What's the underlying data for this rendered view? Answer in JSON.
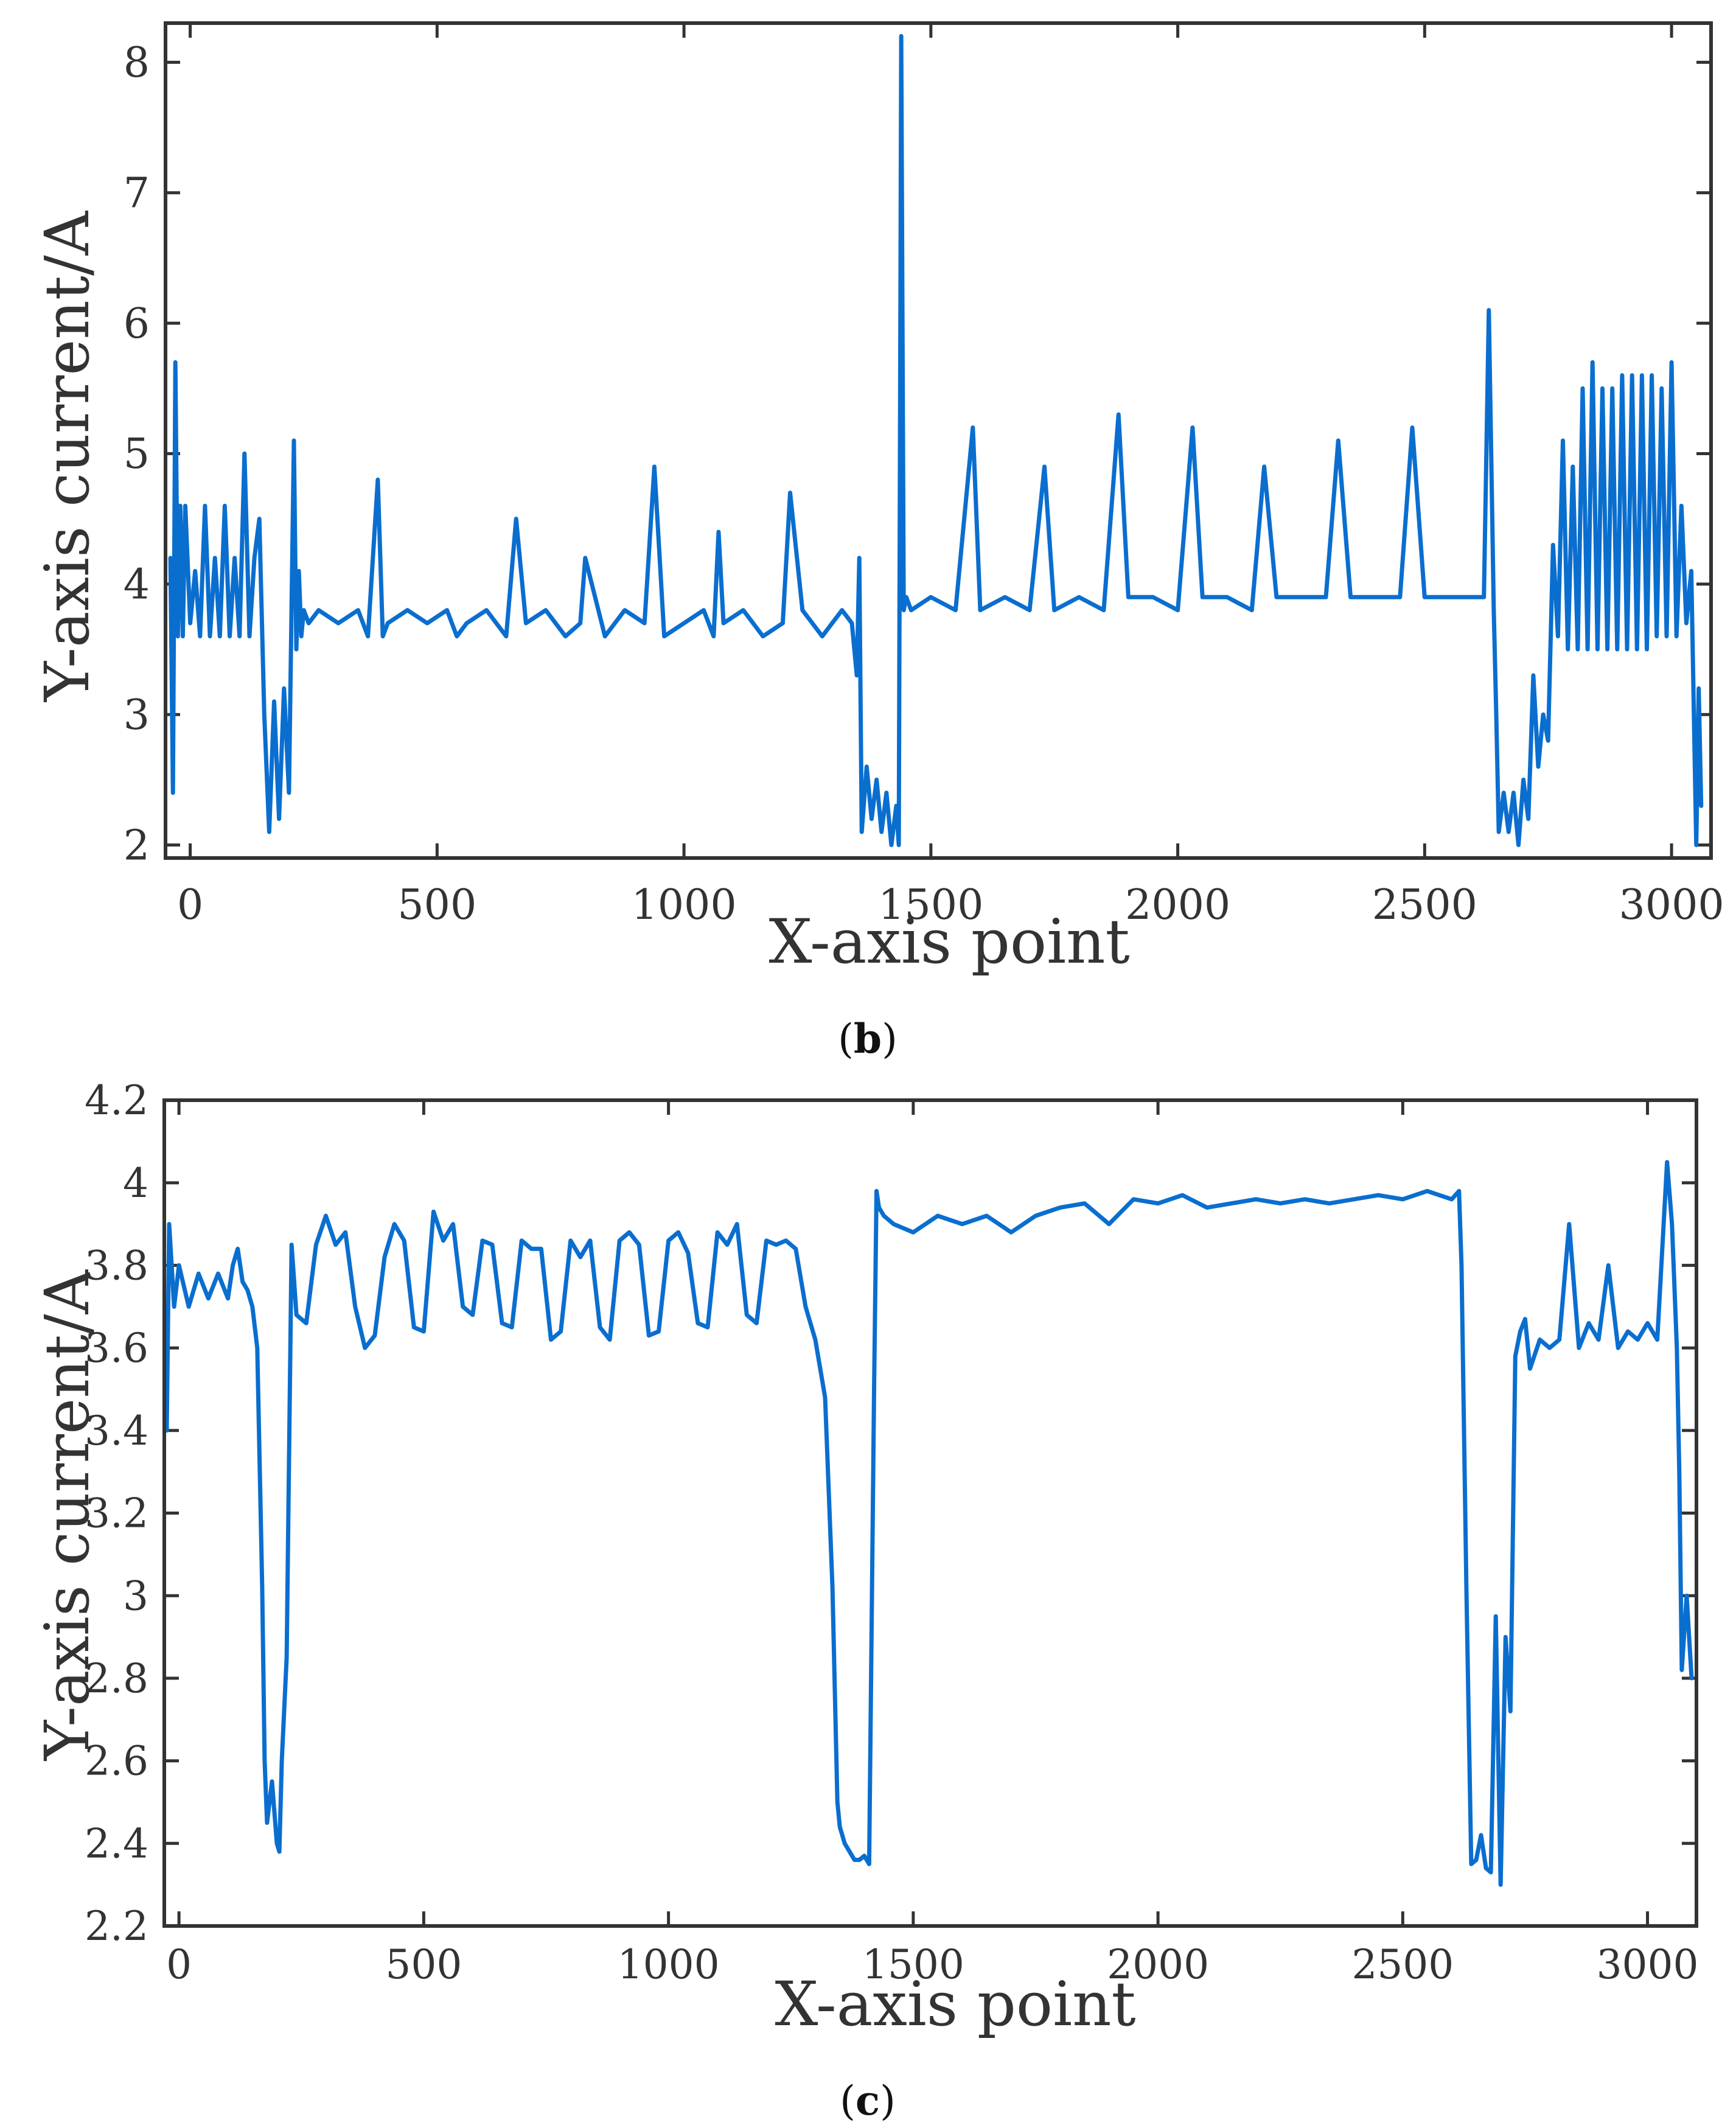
{
  "chart_data": [
    {
      "type": "line",
      "panel_label": "b",
      "xlabel": "X-axis point",
      "ylabel": "Y-axis current/A",
      "xlim": [
        -50,
        3080
      ],
      "ylim": [
        1.9,
        8.3
      ],
      "xticks": [
        0,
        500,
        1000,
        1500,
        2000,
        2500,
        3000
      ],
      "xtick_labels": [
        "0",
        "500",
        "1000",
        "1500",
        "2000",
        "2500",
        "3000"
      ],
      "yticks": [
        2,
        3,
        4,
        5,
        6,
        7,
        8
      ],
      "ytick_labels": [
        "2",
        "3",
        "4",
        "5",
        "6",
        "7",
        "8"
      ],
      "line_color": "#0a6ecf",
      "series": [
        {
          "name": "Y-axis current",
          "x": [
            -40,
            -35,
            -30,
            -25,
            -20,
            -15,
            -10,
            0,
            10,
            20,
            30,
            40,
            50,
            60,
            70,
            80,
            90,
            100,
            110,
            120,
            130,
            140,
            150,
            160,
            170,
            180,
            190,
            200,
            210,
            215,
            220,
            225,
            230,
            240,
            260,
            300,
            340,
            360,
            380,
            390,
            400,
            440,
            480,
            520,
            540,
            560,
            600,
            640,
            660,
            680,
            720,
            760,
            790,
            800,
            840,
            880,
            920,
            940,
            960,
            1000,
            1040,
            1060,
            1070,
            1080,
            1120,
            1160,
            1200,
            1215,
            1240,
            1280,
            1320,
            1340,
            1350,
            1355,
            1360,
            1370,
            1380,
            1390,
            1400,
            1410,
            1420,
            1430,
            1435,
            1440,
            1445,
            1450,
            1460,
            1500,
            1550,
            1585,
            1600,
            1650,
            1700,
            1730,
            1750,
            1800,
            1850,
            1880,
            1900,
            1950,
            2000,
            2030,
            2050,
            2100,
            2150,
            2175,
            2200,
            2250,
            2300,
            2325,
            2350,
            2400,
            2450,
            2475,
            2500,
            2550,
            2600,
            2620,
            2630,
            2640,
            2645,
            2650,
            2660,
            2670,
            2680,
            2690,
            2700,
            2710,
            2720,
            2730,
            2740,
            2750,
            2760,
            2770,
            2780,
            2790,
            2800,
            2810,
            2820,
            2830,
            2840,
            2850,
            2860,
            2870,
            2880,
            2890,
            2900,
            2910,
            2920,
            2930,
            2940,
            2950,
            2960,
            2970,
            2980,
            2990,
            3000,
            3010,
            3020,
            3030,
            3040,
            3050,
            3055,
            3060
          ],
          "y": [
            4.2,
            2.4,
            5.7,
            3.6,
            4.6,
            3.6,
            4.6,
            3.7,
            4.1,
            3.6,
            4.6,
            3.6,
            4.2,
            3.6,
            4.6,
            3.6,
            4.2,
            3.6,
            5.0,
            3.6,
            4.2,
            4.5,
            3.0,
            2.1,
            3.1,
            2.2,
            3.2,
            2.4,
            5.1,
            3.5,
            4.1,
            3.6,
            3.8,
            3.7,
            3.8,
            3.7,
            3.8,
            3.6,
            4.8,
            3.6,
            3.7,
            3.8,
            3.7,
            3.8,
            3.6,
            3.7,
            3.8,
            3.6,
            4.5,
            3.7,
            3.8,
            3.6,
            3.7,
            4.2,
            3.6,
            3.8,
            3.7,
            4.9,
            3.6,
            3.7,
            3.8,
            3.6,
            4.4,
            3.7,
            3.8,
            3.6,
            3.7,
            4.7,
            3.8,
            3.6,
            3.8,
            3.7,
            3.3,
            4.2,
            2.1,
            2.6,
            2.2,
            2.5,
            2.1,
            2.4,
            2.0,
            2.3,
            2.0,
            8.2,
            3.8,
            3.9,
            3.8,
            3.9,
            3.8,
            5.2,
            3.8,
            3.9,
            3.8,
            4.9,
            3.8,
            3.9,
            3.8,
            5.3,
            3.9,
            3.9,
            3.8,
            5.2,
            3.9,
            3.9,
            3.8,
            4.9,
            3.9,
            3.9,
            3.9,
            5.1,
            3.9,
            3.9,
            3.9,
            5.2,
            3.9,
            3.9,
            3.9,
            3.9,
            6.1,
            3.8,
            3.0,
            2.1,
            2.4,
            2.1,
            2.4,
            2.0,
            2.5,
            2.2,
            3.3,
            2.6,
            3.0,
            2.8,
            4.3,
            3.6,
            5.1,
            3.5,
            4.9,
            3.5,
            5.5,
            3.5,
            5.7,
            3.5,
            5.5,
            3.5,
            5.5,
            3.5,
            5.6,
            3.5,
            5.6,
            3.5,
            5.6,
            3.5,
            5.6,
            3.6,
            5.5,
            3.6,
            5.7,
            3.6,
            4.6,
            3.7,
            4.1,
            2.0,
            3.2,
            2.3
          ]
        }
      ]
    },
    {
      "type": "line",
      "panel_label": "c",
      "xlabel": "X-axis point",
      "ylabel": "Y-axis current/A",
      "xlim": [
        -30,
        3100
      ],
      "ylim": [
        2.2,
        4.2
      ],
      "xticks": [
        0,
        500,
        1000,
        1500,
        2000,
        2500,
        3000
      ],
      "xtick_labels": [
        "0",
        "500",
        "1000",
        "1500",
        "2000",
        "2500",
        "3000"
      ],
      "yticks": [
        2.2,
        2.4,
        2.6,
        2.8,
        3.0,
        3.2,
        3.4,
        3.6,
        3.8,
        4.0,
        4.2
      ],
      "ytick_labels": [
        "2.2",
        "2.4",
        "2.6",
        "2.8",
        "3",
        "3.2",
        "3.4",
        "3.6",
        "3.8",
        "4",
        "4.2"
      ],
      "line_color": "#0a6ecf",
      "series": [
        {
          "name": "Y-axis current",
          "x": [
            -25,
            -20,
            -15,
            -10,
            0,
            20,
            40,
            60,
            80,
            100,
            110,
            120,
            130,
            140,
            150,
            160,
            170,
            175,
            180,
            190,
            200,
            205,
            210,
            220,
            230,
            240,
            260,
            280,
            300,
            320,
            340,
            360,
            380,
            400,
            420,
            440,
            460,
            480,
            500,
            520,
            540,
            560,
            580,
            600,
            620,
            640,
            660,
            680,
            700,
            720,
            740,
            760,
            780,
            800,
            820,
            840,
            860,
            880,
            900,
            920,
            940,
            960,
            980,
            1000,
            1020,
            1040,
            1060,
            1080,
            1100,
            1120,
            1140,
            1160,
            1180,
            1200,
            1220,
            1240,
            1260,
            1280,
            1300,
            1320,
            1335,
            1345,
            1350,
            1355,
            1360,
            1370,
            1380,
            1390,
            1400,
            1410,
            1420,
            1425,
            1430,
            1440,
            1460,
            1500,
            1550,
            1600,
            1650,
            1700,
            1750,
            1800,
            1850,
            1900,
            1950,
            2000,
            2050,
            2100,
            2150,
            2200,
            2250,
            2300,
            2350,
            2400,
            2450,
            2500,
            2550,
            2600,
            2615,
            2620,
            2630,
            2640,
            2650,
            2660,
            2670,
            2680,
            2690,
            2700,
            2710,
            2720,
            2730,
            2740,
            2750,
            2760,
            2780,
            2800,
            2820,
            2840,
            2860,
            2880,
            2900,
            2920,
            2940,
            2960,
            2980,
            3000,
            3020,
            3040,
            3050,
            3060,
            3065,
            3070,
            3080,
            3090
          ],
          "y": [
            3.4,
            3.9,
            3.8,
            3.7,
            3.8,
            3.7,
            3.78,
            3.72,
            3.78,
            3.72,
            3.8,
            3.84,
            3.76,
            3.74,
            3.7,
            3.6,
            3.02,
            2.6,
            2.45,
            2.55,
            2.4,
            2.38,
            2.6,
            2.85,
            3.85,
            3.68,
            3.66,
            3.85,
            3.92,
            3.85,
            3.88,
            3.7,
            3.6,
            3.63,
            3.82,
            3.9,
            3.86,
            3.65,
            3.64,
            3.93,
            3.86,
            3.9,
            3.7,
            3.68,
            3.86,
            3.85,
            3.66,
            3.65,
            3.86,
            3.84,
            3.84,
            3.62,
            3.64,
            3.86,
            3.82,
            3.86,
            3.65,
            3.62,
            3.86,
            3.88,
            3.85,
            3.63,
            3.64,
            3.86,
            3.88,
            3.83,
            3.66,
            3.65,
            3.88,
            3.85,
            3.9,
            3.68,
            3.66,
            3.86,
            3.85,
            3.86,
            3.84,
            3.7,
            3.62,
            3.48,
            3.02,
            2.5,
            2.44,
            2.42,
            2.4,
            2.38,
            2.36,
            2.36,
            2.37,
            2.35,
            3.5,
            3.98,
            3.94,
            3.92,
            3.9,
            3.88,
            3.92,
            3.9,
            3.92,
            3.88,
            3.92,
            3.94,
            3.95,
            3.9,
            3.96,
            3.95,
            3.97,
            3.94,
            3.95,
            3.96,
            3.95,
            3.96,
            3.95,
            3.96,
            3.97,
            3.96,
            3.98,
            3.96,
            3.98,
            3.8,
            3.02,
            2.35,
            2.36,
            2.42,
            2.34,
            2.33,
            2.95,
            2.3,
            2.9,
            2.72,
            3.58,
            3.64,
            3.67,
            3.55,
            3.62,
            3.6,
            3.62,
            3.9,
            3.6,
            3.66,
            3.62,
            3.8,
            3.6,
            3.64,
            3.62,
            3.66,
            3.62,
            4.05,
            3.9,
            3.6,
            3.3,
            2.82,
            3.0,
            2.8
          ]
        }
      ]
    }
  ],
  "captions": {
    "b": {
      "open": "(",
      "letter": "b",
      "close": ")"
    },
    "c": {
      "open": "(",
      "letter": "c",
      "close": ")"
    }
  }
}
